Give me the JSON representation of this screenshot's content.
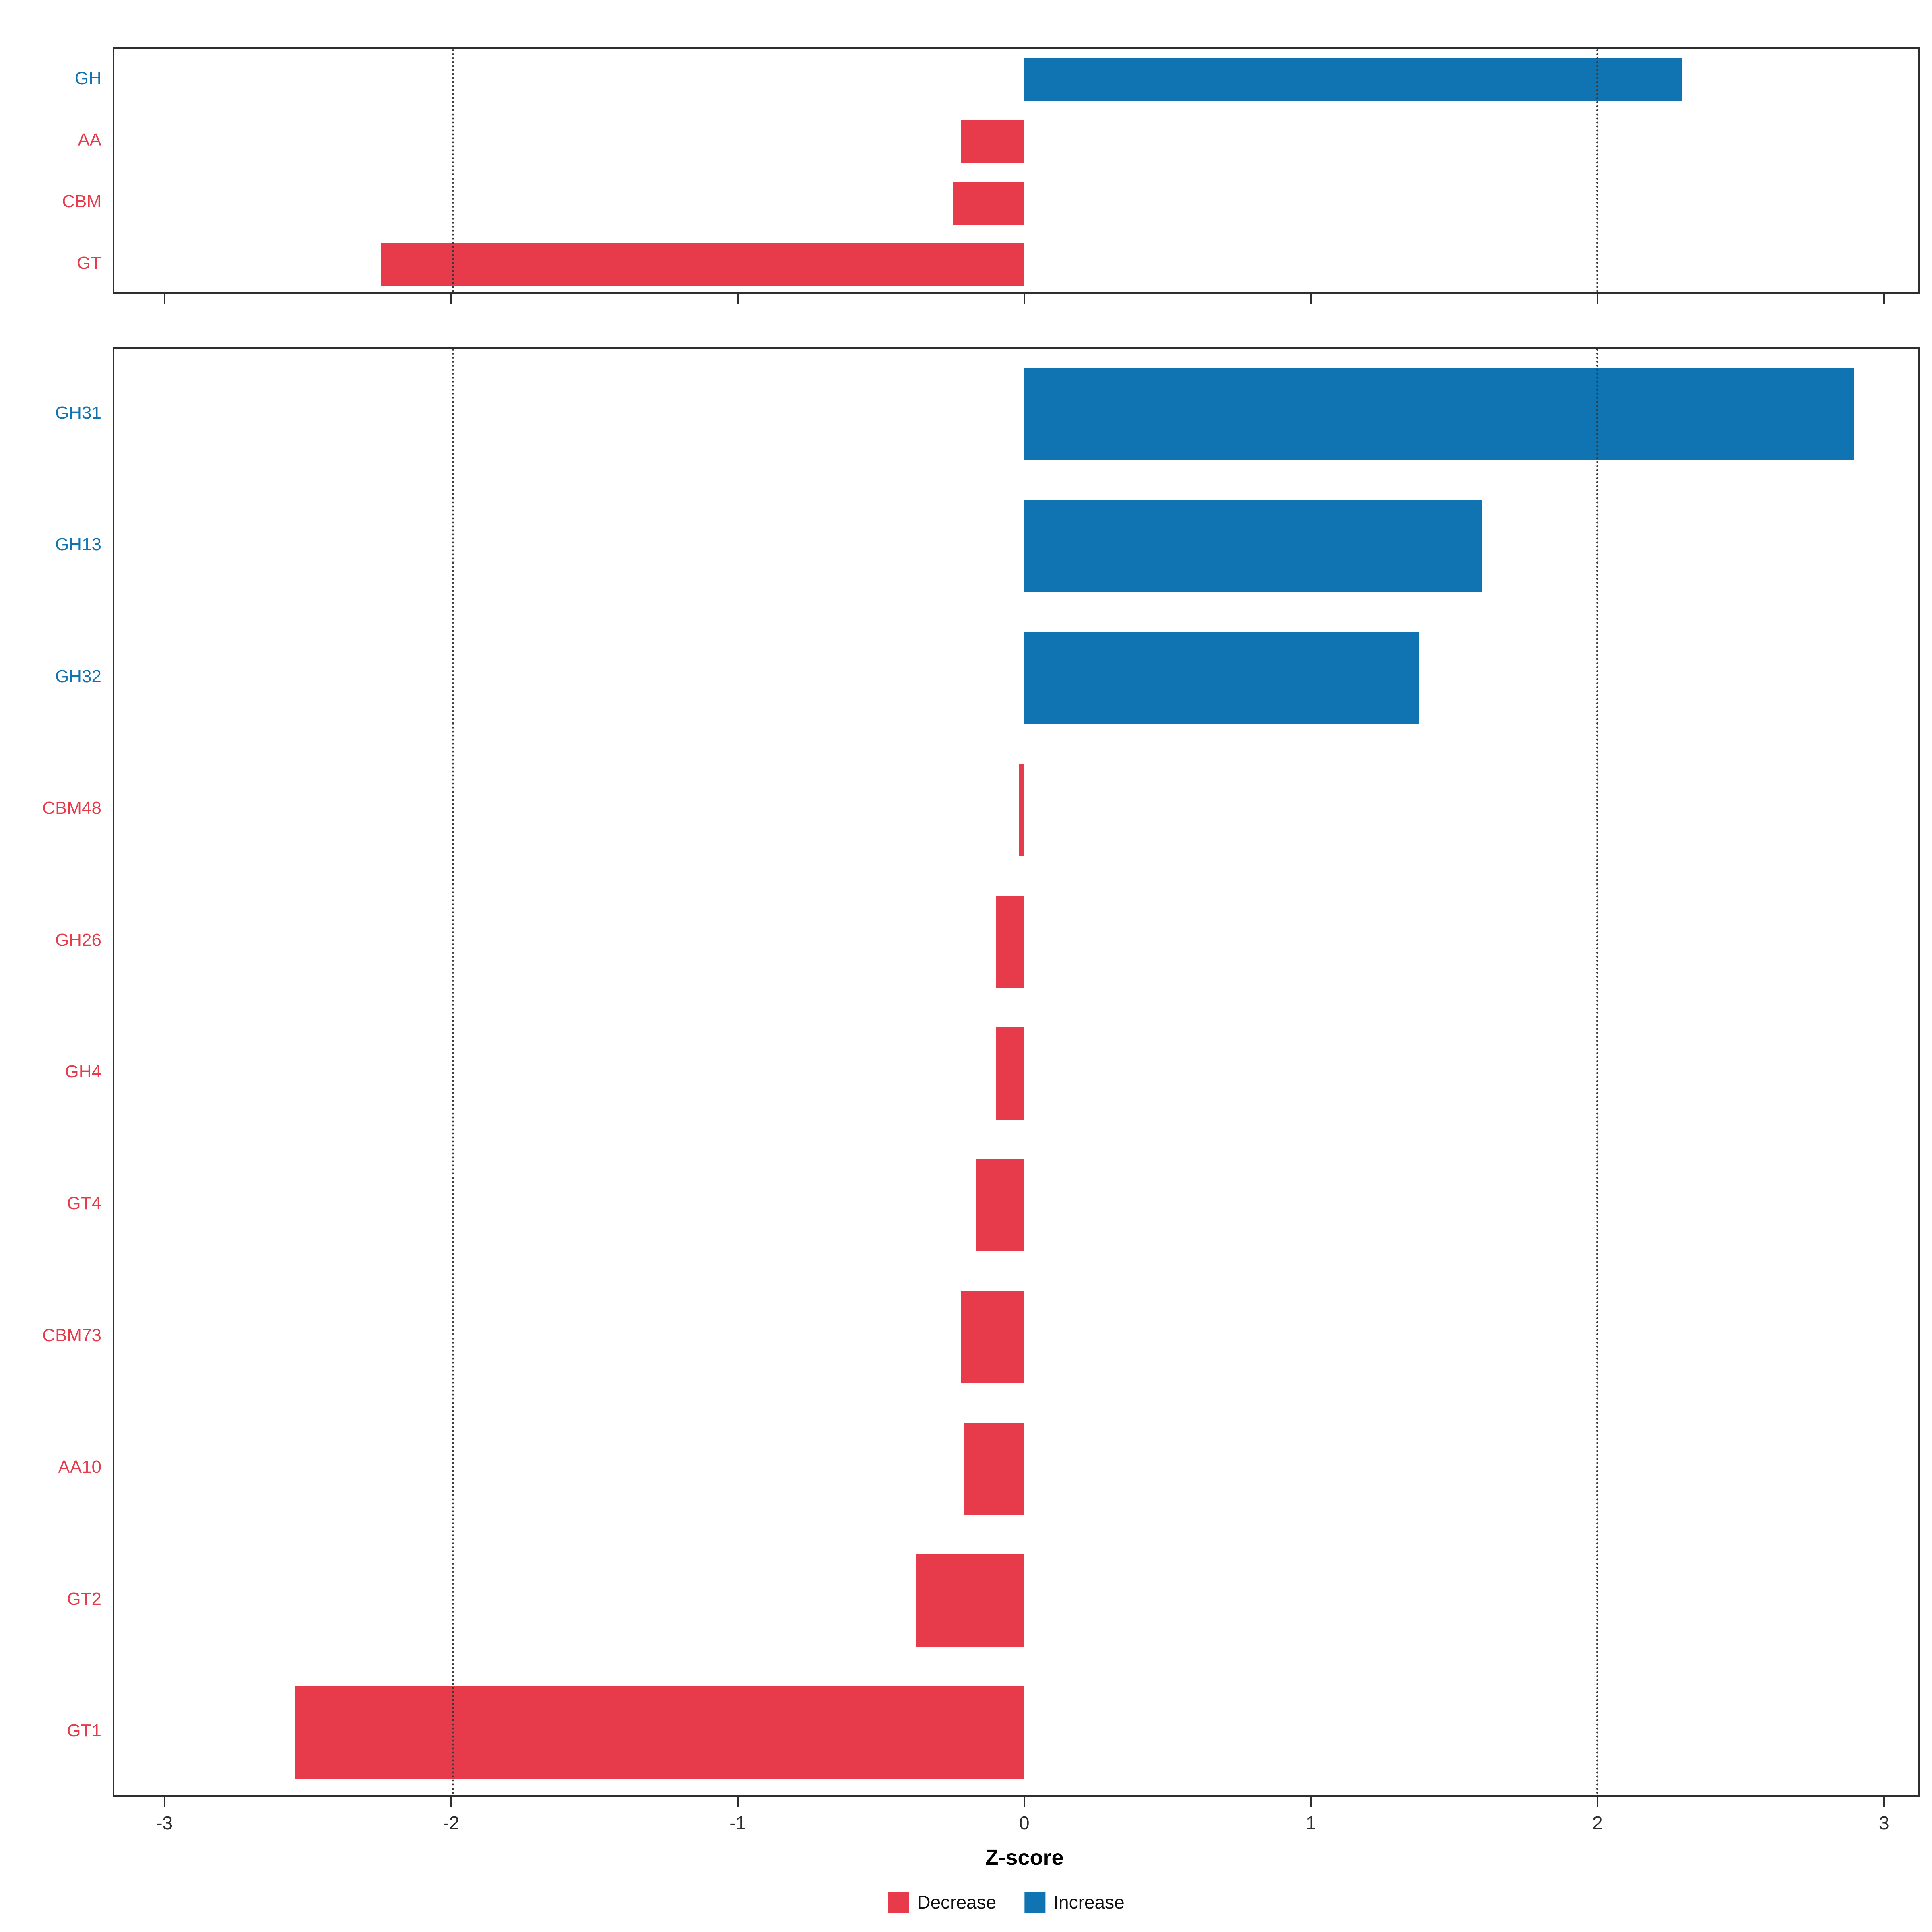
{
  "colors": {
    "decrease": "#E73B4C",
    "increase": "#0F74B1",
    "axis_text": "#2e2e2e",
    "grid": "#3a3a3a",
    "panel_border": "#2e2e2e"
  },
  "xlabel": "Z-score",
  "x_ticks": [
    -3,
    -2,
    -1,
    0,
    1,
    2,
    3
  ],
  "gridlines": [
    -2,
    2
  ],
  "legend": [
    {
      "label": "Decrease",
      "color_key": "decrease"
    },
    {
      "label": "Increase",
      "color_key": "increase"
    }
  ],
  "chart_data": [
    {
      "type": "bar",
      "orientation": "horizontal",
      "panel": "top",
      "title": "",
      "xlabel": "Z-score",
      "xlim": [
        -3,
        3
      ],
      "grid": "dotted at -2 and 2",
      "legend_position": "bottom",
      "categories": [
        "GH",
        "AA",
        "CBM",
        "GT"
      ],
      "values": [
        2.3,
        -0.22,
        -0.25,
        -2.25
      ],
      "directions": [
        "increase",
        "decrease",
        "decrease",
        "decrease"
      ]
    },
    {
      "type": "bar",
      "orientation": "horizontal",
      "panel": "bottom",
      "title": "",
      "xlabel": "Z-score",
      "xlim": [
        -3,
        3
      ],
      "grid": "dotted at -2 and 2",
      "legend_position": "bottom",
      "categories": [
        "GH31",
        "GH13",
        "GH32",
        "CBM48",
        "GH26",
        "GH4",
        "GT4",
        "CBM73",
        "AA10",
        "GT2",
        "GT1"
      ],
      "values": [
        2.9,
        1.6,
        1.38,
        -0.02,
        -0.1,
        -0.1,
        -0.17,
        -0.22,
        -0.21,
        -0.38,
        -2.55
      ],
      "directions": [
        "increase",
        "increase",
        "increase",
        "decrease",
        "decrease",
        "decrease",
        "decrease",
        "decrease",
        "decrease",
        "decrease",
        "decrease"
      ]
    }
  ]
}
